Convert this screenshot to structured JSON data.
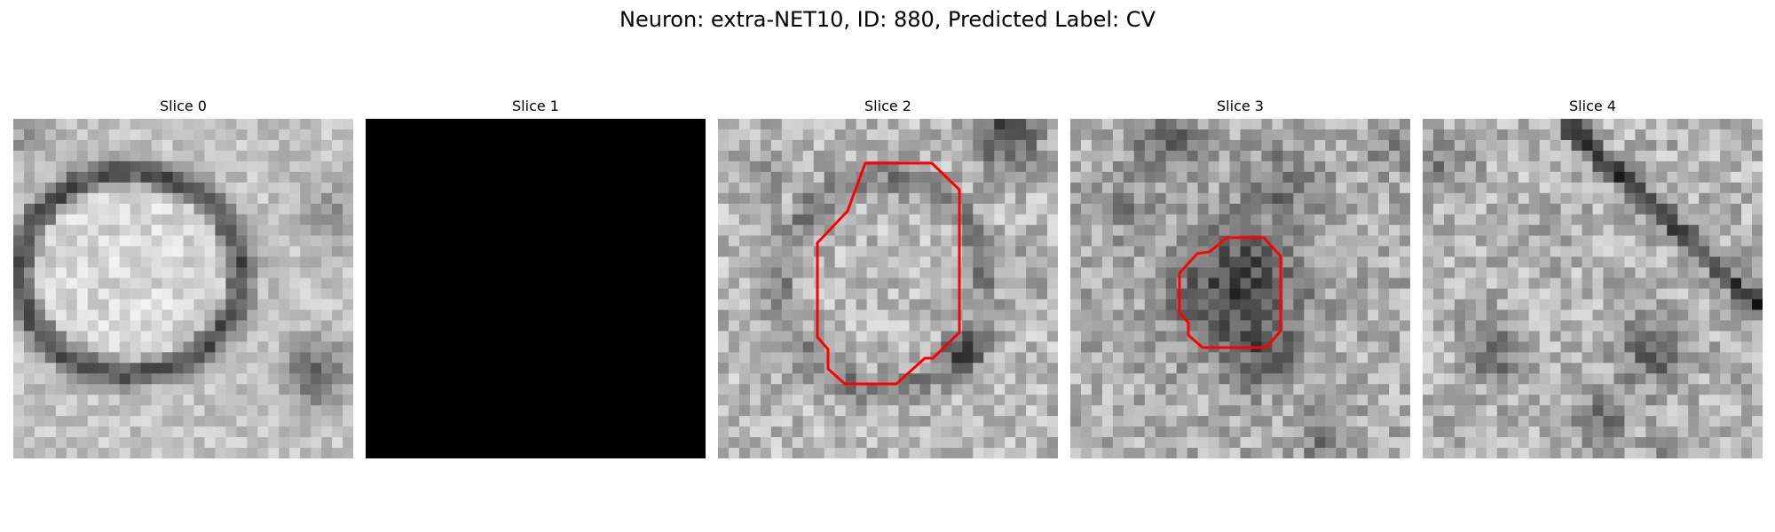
{
  "figure": {
    "title": "Neuron: extra-NET10, ID: 880, Predicted Label: CV"
  },
  "panels": [
    {
      "title": "Slice 0",
      "image": "grayscale EM crop, ring-shaped vesicle",
      "contour": false
    },
    {
      "title": "Slice 1",
      "image": "blank black slice",
      "contour": false
    },
    {
      "title": "Slice 2",
      "image": "grayscale EM crop with red outline",
      "contour": true
    },
    {
      "title": "Slice 3",
      "image": "grayscale EM crop with red outline",
      "contour": true
    },
    {
      "title": "Slice 4",
      "image": "grayscale EM crop",
      "contour": false
    }
  ],
  "colors": {
    "contour": "#ff0000",
    "background": "#ffffff"
  }
}
